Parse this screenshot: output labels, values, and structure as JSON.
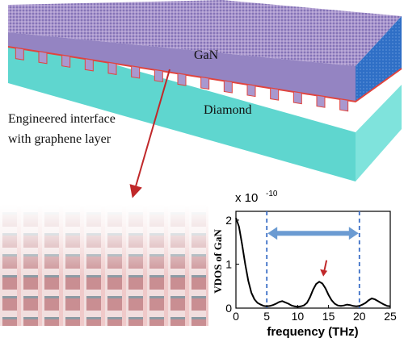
{
  "top_panel": {
    "label_gan": "GaN",
    "label_diamond": "Diamond",
    "caption_line1": "Engineered interface",
    "caption_line2": "with graphene layer"
  },
  "colors": {
    "diamond": "#5fd6cf",
    "gan_purple": "#9d88c6",
    "gan_side": "#2f6fc6",
    "interface_red": "#e0443e",
    "arrow_red": "#c0282a",
    "dashed_blue": "#3b6fc6",
    "double_arrow": "#6b9bd2"
  },
  "chart_data": {
    "type": "line",
    "xlabel": "frequency (THz)",
    "ylabel": "VDOS of GaN",
    "scale_label": "x 10",
    "scale_exponent": "-10",
    "xlim": [
      0,
      25
    ],
    "ylim": [
      0,
      2.2
    ],
    "xticks": [
      0,
      5,
      10,
      15,
      20,
      25
    ],
    "yticks": [
      0,
      1,
      2
    ],
    "xtick_labels": [
      "0",
      "5",
      "10",
      "15",
      "20",
      "25"
    ],
    "ytick_labels": [
      "0",
      "1",
      "2"
    ],
    "x": [
      0,
      0.5,
      1,
      1.5,
      2,
      2.5,
      3,
      3.5,
      4,
      4.5,
      5,
      5.5,
      6,
      6.5,
      7,
      7.5,
      8,
      8.5,
      9,
      9.5,
      10,
      10.5,
      11,
      11.5,
      12,
      12.5,
      13,
      13.5,
      14,
      14.5,
      15,
      15.5,
      16,
      16.5,
      17,
      17.5,
      18,
      18.5,
      19,
      19.5,
      20,
      20.5,
      21,
      21.5,
      22,
      22.5,
      23,
      23.5,
      24,
      24.5,
      25
    ],
    "y": [
      2.05,
      1.85,
      1.45,
      1.0,
      0.62,
      0.35,
      0.2,
      0.12,
      0.08,
      0.05,
      0.04,
      0.05,
      0.07,
      0.1,
      0.14,
      0.16,
      0.13,
      0.1,
      0.06,
      0.04,
      0.03,
      0.04,
      0.06,
      0.12,
      0.25,
      0.42,
      0.55,
      0.6,
      0.56,
      0.45,
      0.3,
      0.18,
      0.1,
      0.06,
      0.05,
      0.06,
      0.08,
      0.07,
      0.05,
      0.04,
      0.05,
      0.08,
      0.12,
      0.18,
      0.22,
      0.2,
      0.16,
      0.12,
      0.08,
      0.05,
      0.04
    ],
    "dashed_lines_x": [
      5,
      20
    ],
    "double_arrow_x": [
      5,
      20
    ],
    "double_arrow_y": 1.7,
    "peak_arrow_x": 13.5,
    "grid": false
  }
}
